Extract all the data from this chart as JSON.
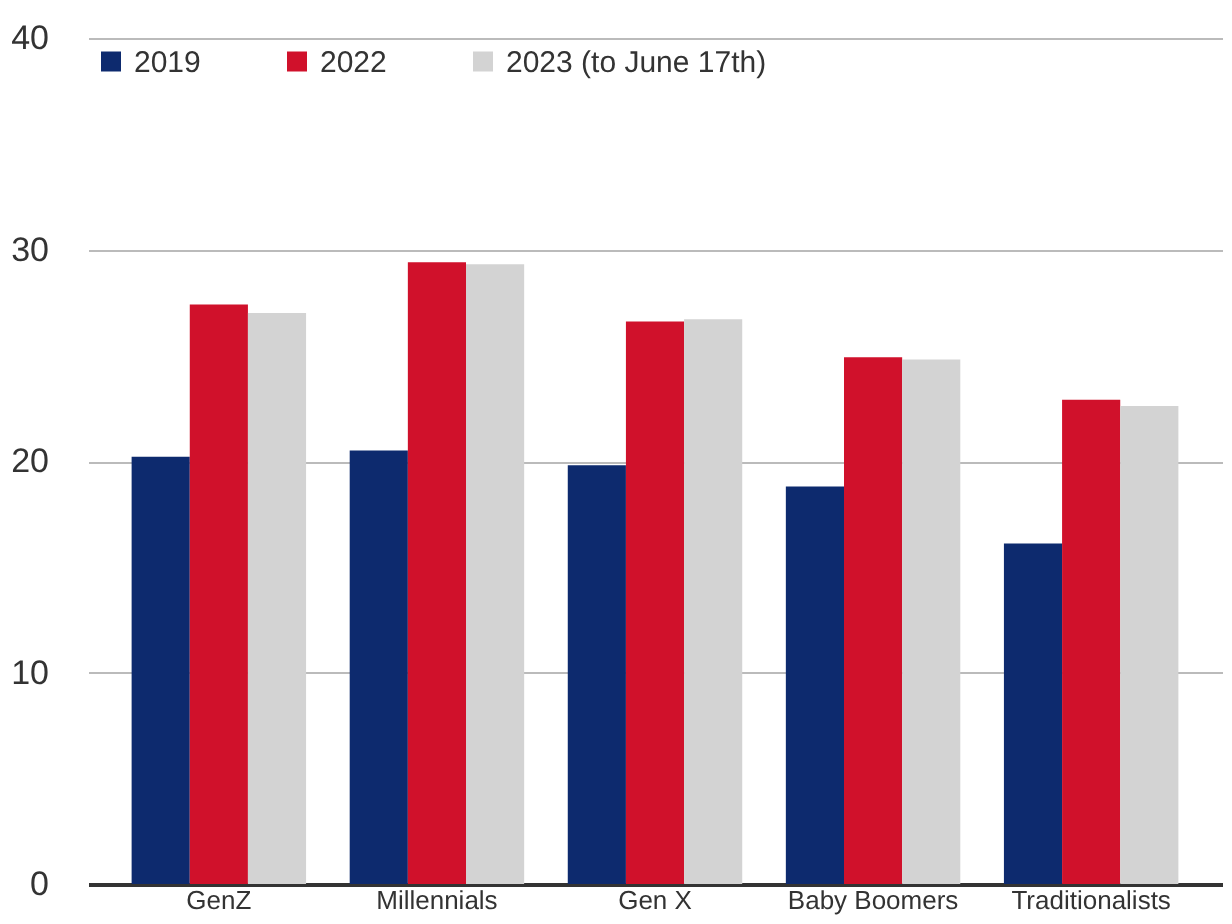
{
  "chart_data": {
    "type": "bar",
    "categories": [
      "GenZ",
      "Millennials",
      "Gen X",
      "Baby Boomers",
      "Traditionalists"
    ],
    "series": [
      {
        "name": "2019",
        "color": "#0d2a6e",
        "values": [
          20.2,
          20.5,
          19.8,
          18.8,
          16.1
        ]
      },
      {
        "name": "2022",
        "color": "#d0112b",
        "values": [
          27.4,
          29.4,
          26.6,
          24.9,
          22.9
        ]
      },
      {
        "name": "2023 (to June 17th)",
        "color": "#d3d3d3",
        "values": [
          27.0,
          29.3,
          26.7,
          24.8,
          22.6
        ]
      }
    ],
    "ylim": [
      0,
      40
    ],
    "yticks": [
      0,
      10,
      20,
      30,
      40
    ],
    "grid": "y",
    "legend": "top left"
  }
}
